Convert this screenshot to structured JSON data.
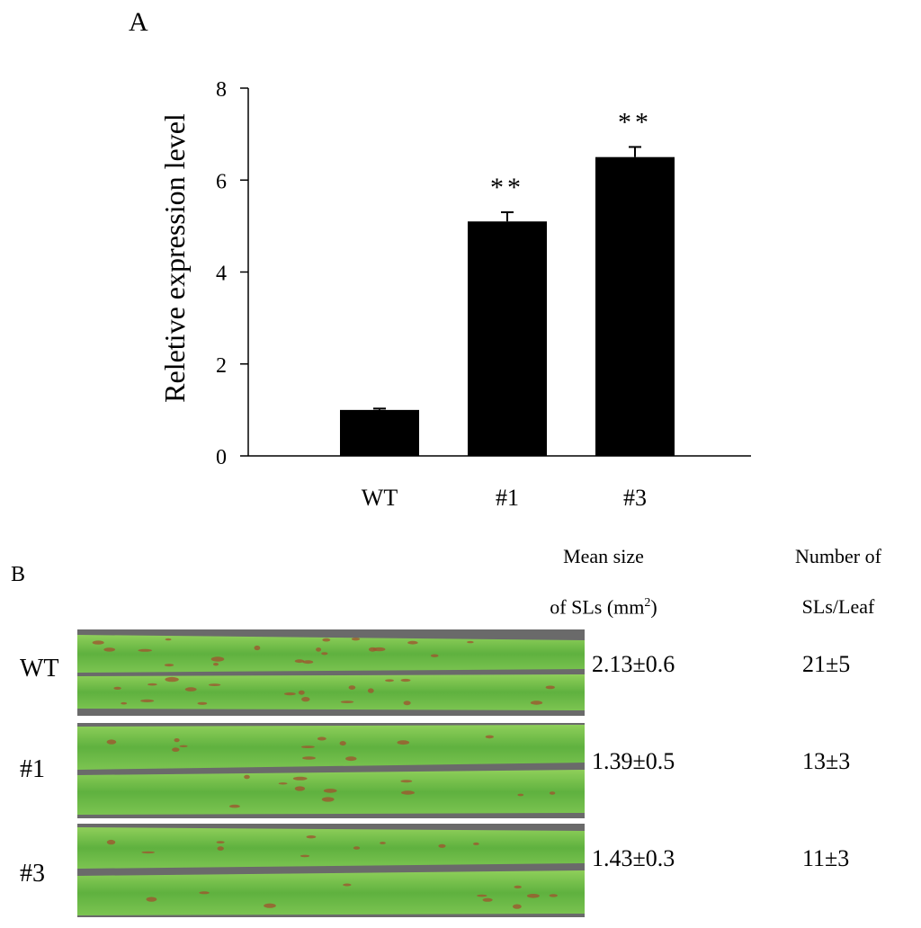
{
  "panel_a_label": "A",
  "panel_b_label": "B",
  "chart_data": {
    "type": "bar",
    "title": "",
    "xlabel": "",
    "ylabel": "Reletive expression level",
    "categories": [
      "WT",
      "#1",
      "#3"
    ],
    "values": [
      1.0,
      5.1,
      6.5
    ],
    "errors": [
      0.03,
      0.2,
      0.22
    ],
    "significance": [
      "",
      "**",
      "**"
    ],
    "ylim": [
      0,
      8
    ],
    "yticks": [
      0,
      2,
      4,
      6,
      8
    ],
    "grid": false,
    "bar_color": "#000000"
  },
  "table": {
    "col_mean_size": {
      "line1": "Mean size",
      "line2_pre": "of SLs (mm",
      "line2_sup": "2",
      "line2_post": ")"
    },
    "col_number": {
      "line1": "Number of",
      "line2": "SLs/Leaf"
    },
    "rows": [
      {
        "label": "WT",
        "mean_size": "2.13±0.6",
        "number": "21±5"
      },
      {
        "label": "#1",
        "mean_size": "1.39±0.5",
        "number": "13±3"
      },
      {
        "label": "#3",
        "mean_size": "1.43±0.3",
        "number": "11±3"
      }
    ]
  },
  "colors": {
    "leaf_green": "#6fbf4a",
    "leaf_dark": "#3f8f2c",
    "lesion": "#a0522d",
    "background": "#ffffff"
  }
}
